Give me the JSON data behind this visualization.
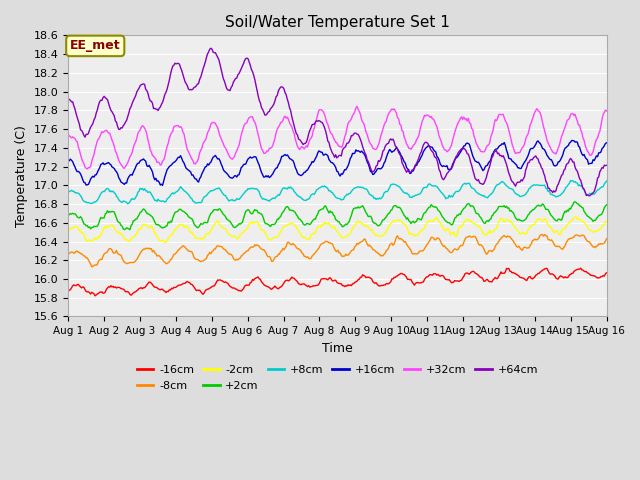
{
  "title": "Soil/Water Temperature Set 1",
  "xlabel": "Time",
  "ylabel": "Temperature (C)",
  "ylim": [
    15.6,
    18.6
  ],
  "xlim": [
    0,
    15
  ],
  "xtick_labels": [
    "Aug 1",
    "Aug 2",
    "Aug 3",
    "Aug 4",
    "Aug 5",
    "Aug 6",
    "Aug 7",
    "Aug 8",
    "Aug 9",
    "Aug 10",
    "Aug 11",
    "Aug 12",
    "Aug 13",
    "Aug 14",
    "Aug 15",
    "Aug 16"
  ],
  "xtick_positions": [
    0,
    1,
    2,
    3,
    4,
    5,
    6,
    7,
    8,
    9,
    10,
    11,
    12,
    13,
    14,
    15
  ],
  "ytick_labels": [
    "15.6",
    "15.8",
    "16.0",
    "16.2",
    "16.4",
    "16.6",
    "16.8",
    "17.0",
    "17.2",
    "17.4",
    "17.6",
    "17.8",
    "18.0",
    "18.2",
    "18.4",
    "18.6"
  ],
  "ytick_positions": [
    15.6,
    15.8,
    16.0,
    16.2,
    16.4,
    16.6,
    16.8,
    17.0,
    17.2,
    17.4,
    17.6,
    17.8,
    18.0,
    18.2,
    18.4,
    18.6
  ],
  "series": [
    {
      "label": "-16cm",
      "color": "#ff0000"
    },
    {
      "label": "-8cm",
      "color": "#ff8800"
    },
    {
      "label": "-2cm",
      "color": "#ffff00"
    },
    {
      "label": "+2cm",
      "color": "#00cc00"
    },
    {
      "label": "+8cm",
      "color": "#00cccc"
    },
    {
      "label": "+16cm",
      "color": "#0000cc"
    },
    {
      "label": "+32cm",
      "color": "#ff44ff"
    },
    {
      "label": "+64cm",
      "color": "#8800bb"
    }
  ],
  "annotation_text": "EE_met",
  "bg_color": "#dddddd",
  "plot_bg_color": "#eeeeee",
  "grid_color": "#ffffff",
  "linewidth": 1.0,
  "title_fontsize": 11,
  "label_fontsize": 9,
  "tick_fontsize": 8
}
